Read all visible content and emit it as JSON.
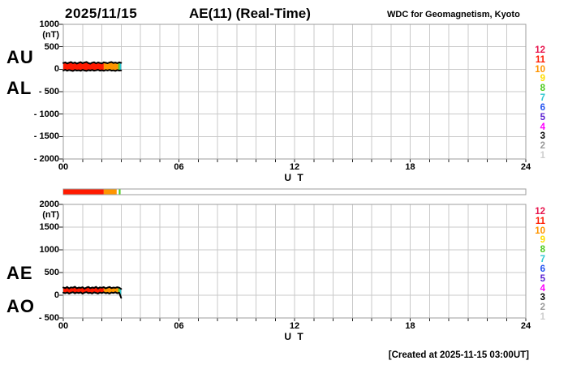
{
  "header": {
    "date": "2025/11/15",
    "title": "AE(11) (Real-Time)",
    "source": "WDC for Geomagnetism, Kyoto"
  },
  "footer": {
    "created": "[Created at 2025-11-15 03:00UT]"
  },
  "colors": {
    "grid": "#c9c9c9",
    "frame": "#9e9e9e",
    "trace_outline": "#000000",
    "bar_border": "#9e9e9e"
  },
  "legend": {
    "meaning": "number of stations",
    "items": [
      {
        "label": "12",
        "color": "#e8174f"
      },
      {
        "label": "11",
        "color": "#ff1a00"
      },
      {
        "label": "10",
        "color": "#ff9500"
      },
      {
        "label": "9",
        "color": "#ffdd00"
      },
      {
        "label": "8",
        "color": "#4ecb1f"
      },
      {
        "label": "7",
        "color": "#2fc7d1"
      },
      {
        "label": "6",
        "color": "#2353f0"
      },
      {
        "label": "5",
        "color": "#5a1fd1"
      },
      {
        "label": "4",
        "color": "#ff00ff"
      },
      {
        "label": "3",
        "color": "#0a0a0a"
      },
      {
        "label": "2",
        "color": "#9a9a9a"
      },
      {
        "label": "1",
        "color": "#cecece"
      }
    ]
  },
  "availability_bar": {
    "xlim": [
      0,
      24
    ],
    "segments": [
      {
        "from": 0,
        "to": 2.1,
        "color": "#ff1a00"
      },
      {
        "from": 2.1,
        "to": 2.77,
        "color": "#ff9500"
      },
      {
        "from": 2.88,
        "to": 2.97,
        "color": "#4ecb1f"
      }
    ]
  },
  "chart_data": [
    {
      "type": "line",
      "panel": "upper",
      "title": "AE(11) (Real-Time)",
      "date": "2025/11/15",
      "left_labels": [
        "AU",
        "AL"
      ],
      "unit": "(nT)",
      "ylim": [
        -2000,
        1000
      ],
      "yticks": [
        {
          "v": 1000,
          "label": "1000"
        },
        {
          "v": 500,
          "label": "500"
        },
        {
          "v": 0,
          "label": "0"
        },
        {
          "v": -500,
          "label": "- 500"
        },
        {
          "v": -1000,
          "label": "- 1000"
        },
        {
          "v": -1500,
          "label": "- 1500"
        },
        {
          "v": -2000,
          "label": "- 2000"
        }
      ],
      "xlim": [
        0,
        24
      ],
      "xticks": [
        {
          "v": 0,
          "label": "00"
        },
        {
          "v": 6,
          "label": "06"
        },
        {
          "v": 12,
          "label": "12"
        },
        {
          "v": 18,
          "label": "18"
        },
        {
          "v": 24,
          "label": "24"
        }
      ],
      "xlabel": "U T",
      "grid": true,
      "series": [
        {
          "name": "AU",
          "x0": 0,
          "dx": 0.1,
          "values": [
            138,
            152,
            128,
            146,
            160,
            134,
            150,
            126,
            144,
            158,
            132,
            148,
            162,
            136,
            124,
            146,
            156,
            130,
            150,
            140,
            128,
            154,
            144,
            132,
            150,
            160,
            138,
            148,
            134,
            152,
            142
          ]
        },
        {
          "name": "AL",
          "x0": 0,
          "dx": 0.1,
          "values": [
            -30,
            -12,
            -34,
            -18,
            -28,
            -40,
            -16,
            -30,
            -22,
            -36,
            -14,
            -28,
            -38,
            -20,
            -30,
            -16,
            -34,
            -24,
            -12,
            -32,
            -22,
            -36,
            -18,
            -28,
            -14,
            -32,
            -24,
            -38,
            -20,
            -30,
            -26
          ]
        }
      ],
      "fill_segments": [
        {
          "from": 0,
          "to": 2.1,
          "color": "#ff1a00",
          "stations": 11
        },
        {
          "from": 2.1,
          "to": 2.85,
          "color": "#ff9500",
          "stations": 10
        },
        {
          "from": 2.85,
          "to": 2.93,
          "color": "#4ecb1f",
          "stations": 8
        },
        {
          "from": 2.93,
          "to": 3.0,
          "color": "#2fc7d1",
          "stations": 7
        }
      ]
    },
    {
      "type": "line",
      "panel": "lower",
      "title": "AE(11) (Real-Time)",
      "date": "2025/11/15",
      "left_labels": [
        "AE",
        "AO"
      ],
      "unit": "(nT)",
      "ylim": [
        -500,
        2000
      ],
      "yticks": [
        {
          "v": 2000,
          "label": "2000"
        },
        {
          "v": 1500,
          "label": "1500"
        },
        {
          "v": 1000,
          "label": "1000"
        },
        {
          "v": 500,
          "label": "500"
        },
        {
          "v": 0,
          "label": "0"
        },
        {
          "v": -500,
          "label": "- 500"
        }
      ],
      "xlim": [
        0,
        24
      ],
      "xticks": [
        {
          "v": 0,
          "label": "00"
        },
        {
          "v": 6,
          "label": "06"
        },
        {
          "v": 12,
          "label": "12"
        },
        {
          "v": 18,
          "label": "18"
        },
        {
          "v": 24,
          "label": "24"
        }
      ],
      "xlabel": "U T",
      "grid": true,
      "series": [
        {
          "name": "AE",
          "x0": 0,
          "dx": 0.1,
          "values": [
            170,
            158,
            182,
            150,
            174,
            166,
            188,
            154,
            170,
            162,
            178,
            146,
            168,
            184,
            156,
            172,
            160,
            186,
            150,
            174,
            164,
            178,
            152,
            168,
            182,
            158,
            170,
            162,
            176,
            166,
            140
          ]
        },
        {
          "name": "AO",
          "x0": 0,
          "dx": 0.1,
          "values": [
            58,
            44,
            62,
            38,
            56,
            66,
            42,
            60,
            48,
            64,
            36,
            58,
            68,
            46,
            56,
            40,
            62,
            52,
            38,
            60,
            48,
            64,
            44,
            56,
            38,
            60,
            50,
            66,
            44,
            58,
            -55
          ]
        }
      ],
      "fill_segments": [
        {
          "from": 0,
          "to": 2.1,
          "color": "#ff1a00",
          "stations": 11
        },
        {
          "from": 2.1,
          "to": 2.85,
          "color": "#ff9500",
          "stations": 10
        },
        {
          "from": 2.85,
          "to": 2.93,
          "color": "#4ecb1f",
          "stations": 8
        },
        {
          "from": 2.93,
          "to": 3.0,
          "color": "#2fc7d1",
          "stations": 7
        }
      ]
    }
  ]
}
